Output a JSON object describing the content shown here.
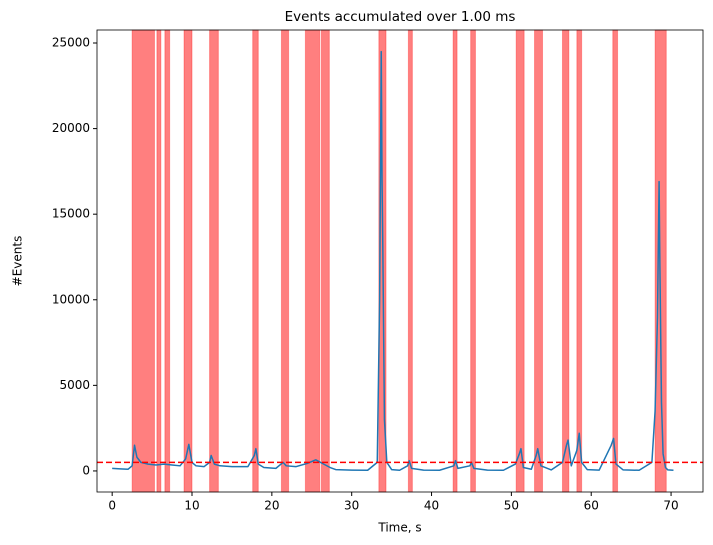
{
  "chart_data": {
    "type": "line",
    "title": "Events accumulated over 1.00 ms",
    "x_label": "Time, s",
    "y_label": "#Events",
    "x": [
      0,
      1,
      2,
      2.5,
      2.8,
      3.1,
      3.6,
      4.5,
      5.5,
      6.5,
      7.5,
      8.5,
      9.2,
      9.6,
      10.0,
      10.5,
      11.5,
      12.2,
      12.4,
      12.8,
      13.5,
      15,
      17,
      17.8,
      18.0,
      18.3,
      19,
      20.5,
      21.4,
      21.8,
      23,
      24.5,
      25.5,
      26.5,
      27.3,
      28,
      30,
      32,
      33.2,
      33.5,
      33.7,
      33.8,
      33.9,
      34.1,
      34.4,
      35,
      36,
      37.0,
      37.2,
      37.5,
      39,
      41,
      42.8,
      43.0,
      43.3,
      44.8,
      45.0,
      45.3,
      47,
      49,
      50.5,
      51.0,
      51.2,
      51.5,
      52.5,
      53.1,
      53.3,
      53.7,
      55,
      56.4,
      56.9,
      57.1,
      57.5,
      58.2,
      58.5,
      58.8,
      59.5,
      61,
      62.5,
      62.8,
      63.1,
      64,
      66,
      67.6,
      68.0,
      68.3,
      68.5,
      68.6,
      68.8,
      69.0,
      69.3,
      69.6,
      70.3
    ],
    "series": [
      {
        "color": "#1f77b4",
        "values": [
          150,
          120,
          100,
          300,
          1500,
          800,
          500,
          400,
          350,
          400,
          350,
          300,
          700,
          1550,
          500,
          300,
          250,
          500,
          900,
          400,
          300,
          250,
          250,
          900,
          1300,
          400,
          200,
          150,
          500,
          300,
          250,
          450,
          650,
          400,
          200,
          80,
          50,
          40,
          500,
          10000,
          24500,
          17000,
          13000,
          3000,
          500,
          80,
          40,
          300,
          600,
          150,
          50,
          40,
          300,
          600,
          150,
          300,
          500,
          150,
          50,
          40,
          400,
          1000,
          1300,
          200,
          100,
          900,
          1300,
          300,
          60,
          500,
          1500,
          1800,
          300,
          1200,
          2200,
          500,
          80,
          50,
          1500,
          1900,
          400,
          60,
          40,
          500,
          3500,
          9000,
          16900,
          12000,
          4000,
          1000,
          200,
          60,
          40
        ]
      }
    ],
    "spans": [
      [
        2.5,
        5.3
      ],
      [
        5.6,
        6.1
      ],
      [
        6.6,
        7.2
      ],
      [
        9.0,
        10.0
      ],
      [
        12.2,
        13.3
      ],
      [
        17.6,
        18.3
      ],
      [
        21.2,
        22.1
      ],
      [
        24.2,
        26.0
      ],
      [
        26.2,
        27.2
      ],
      [
        33.4,
        34.3
      ],
      [
        37.1,
        37.6
      ],
      [
        42.7,
        43.2
      ],
      [
        44.9,
        45.5
      ],
      [
        50.6,
        51.6
      ],
      [
        52.9,
        53.9
      ],
      [
        56.4,
        57.2
      ],
      [
        58.2,
        58.8
      ],
      [
        62.7,
        63.3
      ],
      [
        68.0,
        69.4
      ]
    ],
    "span_color": "#ff0000",
    "threshold": 500,
    "threshold_color": "#ff0000",
    "xlim": [
      -1.9,
      74.0
    ],
    "ylim": [
      -1230,
      25760
    ],
    "xticks": [
      0,
      10,
      20,
      30,
      40,
      50,
      60,
      70
    ],
    "yticks": [
      0,
      5000,
      10000,
      15000,
      20000,
      25000
    ]
  }
}
